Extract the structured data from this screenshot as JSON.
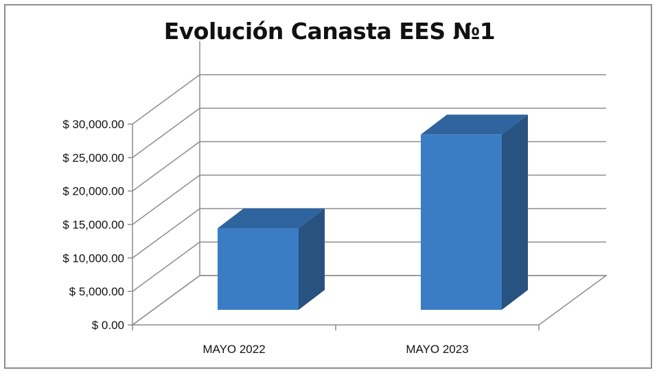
{
  "chart_data": {
    "type": "bar",
    "title": "Evolución Canasta EES №1",
    "categories": [
      "MAYO 2022",
      "MAYO 2023"
    ],
    "series": [
      {
        "values": [
          13000,
          27000
        ]
      }
    ],
    "ylim": [
      0,
      30000
    ],
    "yticks": [
      {
        "value": 0,
        "label": "$ 0.00"
      },
      {
        "value": 5000,
        "label": "$ 5,000.00"
      },
      {
        "value": 10000,
        "label": "$ 10,000.00"
      },
      {
        "value": 15000,
        "label": "$ 15,000.00"
      },
      {
        "value": 20000,
        "label": "$ 20,000.00"
      },
      {
        "value": 25000,
        "label": "$ 25,000.00"
      },
      {
        "value": 30000,
        "label": "$ 30,000.00"
      }
    ],
    "grid": true,
    "style": "3d-column",
    "colors": {
      "front": "#3a7dc4",
      "top": "#2f649e",
      "side": "#28527f",
      "grid": "#8c8c8c"
    }
  }
}
